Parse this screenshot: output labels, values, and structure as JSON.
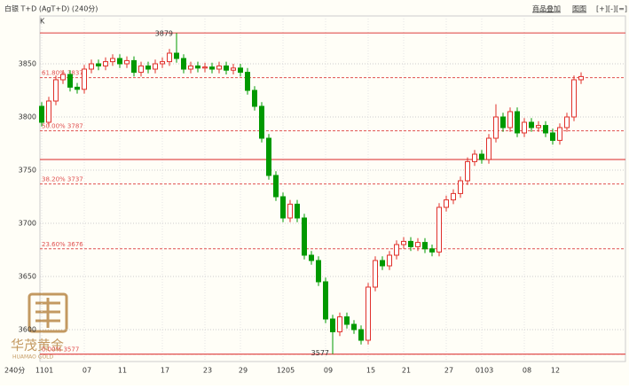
{
  "header": {
    "title": "白银 T+D (AgT+D) (240分)",
    "links": [
      "商品叠加",
      "图图",
      "[+][-][=]"
    ]
  },
  "chart_data": {
    "type": "candlestick",
    "y_axis_label": "K",
    "x_axis_label": "240分",
    "categories": [
      "1101",
      null,
      null,
      null,
      null,
      null,
      "07",
      null,
      null,
      null,
      null,
      "11",
      null,
      null,
      null,
      null,
      null,
      "17",
      null,
      null,
      null,
      null,
      null,
      "23",
      null,
      null,
      null,
      null,
      "29",
      null,
      null,
      null,
      null,
      null,
      "1205",
      null,
      null,
      null,
      null,
      null,
      "09",
      null,
      null,
      null,
      null,
      null,
      "15",
      null,
      null,
      null,
      null,
      "21",
      null,
      null,
      null,
      null,
      null,
      "27",
      null,
      null,
      null,
      null,
      "0103",
      null,
      null,
      null,
      null,
      null,
      "08",
      null,
      null,
      null,
      "12",
      null,
      null,
      null,
      null
    ],
    "ohlc": [
      [
        3810,
        3814,
        3791,
        3795
      ],
      [
        3795,
        3819,
        3791,
        3815
      ],
      [
        3815,
        3839,
        3811,
        3835
      ],
      [
        3835,
        3844,
        3831,
        3840
      ],
      [
        3840,
        3844,
        3824,
        3828
      ],
      [
        3828,
        3832,
        3822,
        3826
      ],
      [
        3826,
        3849,
        3822,
        3845
      ],
      [
        3845,
        3854,
        3841,
        3850
      ],
      [
        3850,
        3854,
        3844,
        3848
      ],
      [
        3848,
        3856,
        3844,
        3852
      ],
      [
        3852,
        3859,
        3848,
        3855
      ],
      [
        3855,
        3859,
        3846,
        3850
      ],
      [
        3850,
        3857,
        3846,
        3853
      ],
      [
        3853,
        3857,
        3838,
        3842
      ],
      [
        3842,
        3852,
        3838,
        3848
      ],
      [
        3848,
        3852,
        3841,
        3845
      ],
      [
        3845,
        3854,
        3841,
        3850
      ],
      [
        3850,
        3856,
        3846,
        3852
      ],
      [
        3852,
        3864,
        3848,
        3860
      ],
      [
        3860,
        3879,
        3851,
        3855
      ],
      [
        3855,
        3859,
        3841,
        3845
      ],
      [
        3845,
        3852,
        3841,
        3848
      ],
      [
        3848,
        3852,
        3842,
        3846
      ],
      [
        3846,
        3851,
        3842,
        3847
      ],
      [
        3847,
        3851,
        3841,
        3845
      ],
      [
        3845,
        3852,
        3841,
        3848
      ],
      [
        3848,
        3852,
        3840,
        3844
      ],
      [
        3844,
        3850,
        3840,
        3846
      ],
      [
        3846,
        3850,
        3838,
        3842
      ],
      [
        3842,
        3846,
        3821,
        3825
      ],
      [
        3825,
        3829,
        3806,
        3810
      ],
      [
        3810,
        3814,
        3776,
        3780
      ],
      [
        3780,
        3784,
        3741,
        3745
      ],
      [
        3745,
        3749,
        3721,
        3725
      ],
      [
        3725,
        3729,
        3701,
        3705
      ],
      [
        3705,
        3722,
        3701,
        3718
      ],
      [
        3718,
        3722,
        3701,
        3705
      ],
      [
        3705,
        3709,
        3666,
        3670
      ],
      [
        3670,
        3674,
        3661,
        3665
      ],
      [
        3665,
        3669,
        3641,
        3645
      ],
      [
        3645,
        3649,
        3606,
        3610
      ],
      [
        3610,
        3614,
        3577,
        3598
      ],
      [
        3598,
        3616,
        3594,
        3612
      ],
      [
        3612,
        3616,
        3601,
        3605
      ],
      [
        3605,
        3609,
        3596,
        3600
      ],
      [
        3600,
        3604,
        3586,
        3590
      ],
      [
        3590,
        3644,
        3586,
        3640
      ],
      [
        3640,
        3669,
        3636,
        3665
      ],
      [
        3665,
        3669,
        3656,
        3660
      ],
      [
        3660,
        3674,
        3656,
        3670
      ],
      [
        3670,
        3684,
        3666,
        3680
      ],
      [
        3680,
        3687,
        3676,
        3683
      ],
      [
        3683,
        3687,
        3674,
        3678
      ],
      [
        3678,
        3686,
        3674,
        3682
      ],
      [
        3682,
        3686,
        3672,
        3676
      ],
      [
        3676,
        3680,
        3669,
        3673
      ],
      [
        3673,
        3719,
        3669,
        3715
      ],
      [
        3715,
        3726,
        3711,
        3722
      ],
      [
        3722,
        3732,
        3718,
        3728
      ],
      [
        3728,
        3744,
        3724,
        3740
      ],
      [
        3740,
        3762,
        3736,
        3758
      ],
      [
        3758,
        3769,
        3754,
        3765
      ],
      [
        3765,
        3769,
        3756,
        3760
      ],
      [
        3760,
        3784,
        3756,
        3780
      ],
      [
        3780,
        3812,
        3776,
        3800
      ],
      [
        3800,
        3804,
        3786,
        3790
      ],
      [
        3790,
        3809,
        3786,
        3805
      ],
      [
        3805,
        3809,
        3781,
        3785
      ],
      [
        3785,
        3799,
        3781,
        3795
      ],
      [
        3795,
        3799,
        3786,
        3790
      ],
      [
        3790,
        3796,
        3786,
        3792
      ],
      [
        3792,
        3796,
        3781,
        3785
      ],
      [
        3785,
        3789,
        3774,
        3778
      ],
      [
        3778,
        3794,
        3774,
        3790
      ],
      [
        3790,
        3804,
        3786,
        3800
      ],
      [
        3800,
        3839,
        3796,
        3835
      ],
      [
        3835,
        3842,
        3831,
        3838
      ]
    ],
    "ylim": [
      3570,
      3895
    ],
    "yticks": [
      3600,
      3650,
      3700,
      3750,
      3800,
      3850
    ],
    "grid": true,
    "up_color": "#e0302a",
    "down_color": "#009900",
    "hlines": [
      3879,
      3760,
      3577
    ],
    "hline_color": "#e05050",
    "fib_levels": [
      {
        "value": 3837,
        "label": "61.80% 3837"
      },
      {
        "value": 3787,
        "label": "50.00% 3787"
      },
      {
        "value": 3737,
        "label": "38.20% 3737"
      },
      {
        "value": 3676,
        "label": "23.60% 3676"
      },
      {
        "value": 3577,
        "label": "0.00% 3577"
      }
    ],
    "extremes": [
      3879,
      3577
    ]
  },
  "watermark": {
    "name": "华茂黄金",
    "latin": "HUAMAO GOLD"
  }
}
